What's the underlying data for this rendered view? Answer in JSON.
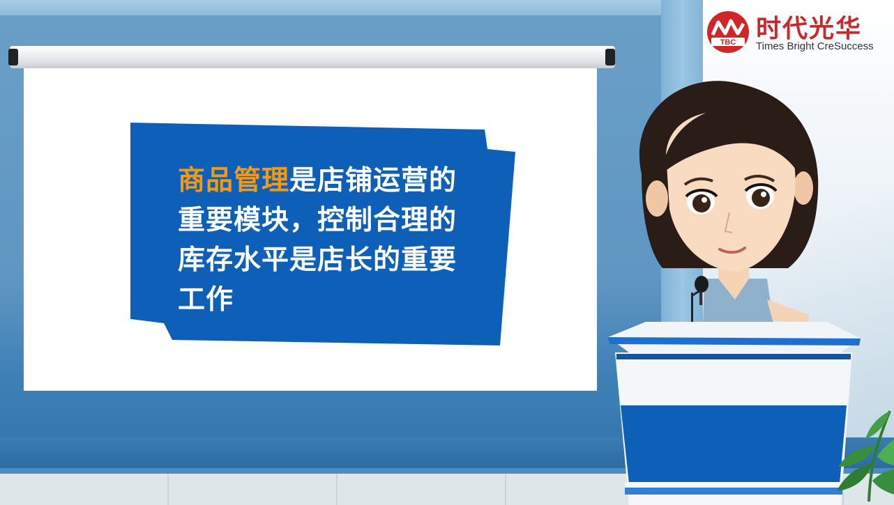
{
  "logo": {
    "name_cn": "时代光华",
    "name_en": "Times Bright CreSuccess",
    "mark_text": "TBC",
    "brand_color": "#c8282b"
  },
  "banner": {
    "highlight": "商品管理",
    "text": "是店铺运营的重要模块，控制合理的库存水平是店长的重要工作",
    "highlight_color": "#f39a12",
    "background_color": "#0d5fb8"
  },
  "scene": {
    "wall_color": "#5f97c2",
    "podium_color": "#0d5fb8"
  }
}
